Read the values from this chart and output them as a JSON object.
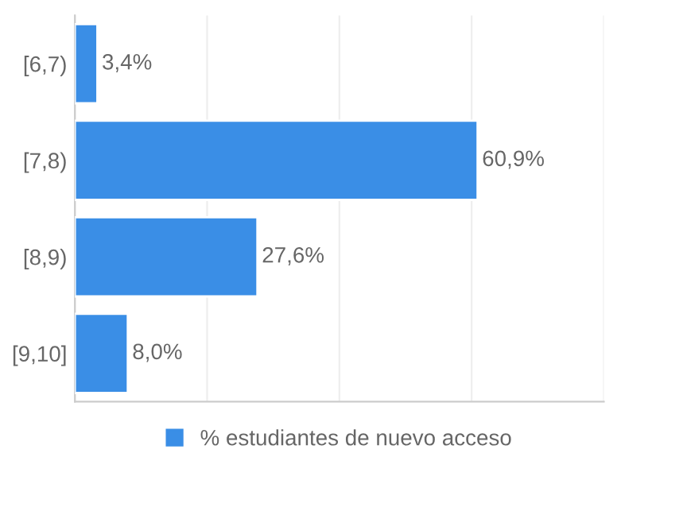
{
  "chart_data": {
    "type": "bar",
    "orientation": "horizontal",
    "categories": [
      "[6,7)",
      "[7,8)",
      "[8,9)",
      "[9,10]"
    ],
    "series": [
      {
        "name": "% estudiantes de nuevo acceso",
        "color": "#3a8ee6",
        "values": [
          3.4,
          60.9,
          27.6,
          8.0
        ],
        "value_labels": [
          "3,4%",
          "60,9%",
          "27,6%",
          "8,0%"
        ]
      }
    ],
    "xlim": [
      0,
      80
    ],
    "xticks": [
      {
        "value": 0,
        "label": null
      },
      {
        "value": 20,
        "label": null
      },
      {
        "value": 40,
        "label": null
      },
      {
        "value": 60,
        "label": null
      },
      {
        "value": 80,
        "label": null
      }
    ],
    "grid": "x",
    "legend": "bottom",
    "tick_labels": "y"
  }
}
